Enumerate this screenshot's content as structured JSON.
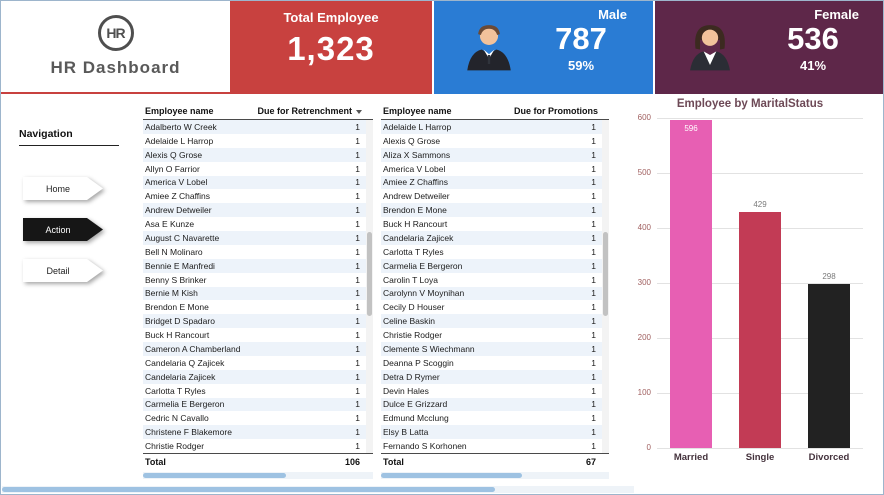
{
  "header": {
    "logo": "HR",
    "title": "HR Dashboard",
    "cards": {
      "total": {
        "label": "Total Employee",
        "value": "1,323"
      },
      "male": {
        "label": "Male",
        "value": "787",
        "percent": "59%"
      },
      "female": {
        "label": "Female",
        "value": "536",
        "percent": "41%"
      }
    }
  },
  "sidebar": {
    "title": "Navigation",
    "items": [
      {
        "label": "Home",
        "active": false
      },
      {
        "label": "Action",
        "active": true
      },
      {
        "label": "Detail",
        "active": false
      }
    ]
  },
  "tables": [
    {
      "name_header": "Employee name",
      "value_header": "Due for Retrenchment",
      "has_dropdown": true,
      "rows": [
        {
          "name": "Adalberto W Creek",
          "value": 1
        },
        {
          "name": "Adelaide L Harrop",
          "value": 1
        },
        {
          "name": "Alexis Q Grose",
          "value": 1
        },
        {
          "name": "Allyn O Farrior",
          "value": 1
        },
        {
          "name": "America V Lobel",
          "value": 1
        },
        {
          "name": "Amiee Z Chaffins",
          "value": 1
        },
        {
          "name": "Andrew Detweiler",
          "value": 1
        },
        {
          "name": "Asa E Kunze",
          "value": 1
        },
        {
          "name": "August C Navarette",
          "value": 1
        },
        {
          "name": "Bell N Molinaro",
          "value": 1
        },
        {
          "name": "Bennie E Manfredi",
          "value": 1
        },
        {
          "name": "Benny S Brinker",
          "value": 1
        },
        {
          "name": "Bernie M Kish",
          "value": 1
        },
        {
          "name": "Brendon E Mone",
          "value": 1
        },
        {
          "name": "Bridget D Spadaro",
          "value": 1
        },
        {
          "name": "Buck H Rancourt",
          "value": 1
        },
        {
          "name": "Cameron A Chamberland",
          "value": 1
        },
        {
          "name": "Candelaria Q Zajicek",
          "value": 1
        },
        {
          "name": "Candelaria Zajicek",
          "value": 1
        },
        {
          "name": "Carlotta T Ryles",
          "value": 1
        },
        {
          "name": "Carmelia E Bergeron",
          "value": 1
        },
        {
          "name": "Cedric N Cavallo",
          "value": 1
        },
        {
          "name": "Christene F Blakemore",
          "value": 1
        },
        {
          "name": "Christie Rodger",
          "value": 1
        }
      ],
      "total_label": "Total",
      "total_value": 106
    },
    {
      "name_header": "Employee name",
      "value_header": "Due for Promotions",
      "has_dropdown": false,
      "rows": [
        {
          "name": "Adelaide L Harrop",
          "value": 1
        },
        {
          "name": "Alexis Q Grose",
          "value": 1
        },
        {
          "name": "Aliza X Sammons",
          "value": 1
        },
        {
          "name": "America V Lobel",
          "value": 1
        },
        {
          "name": "Amiee Z Chaffins",
          "value": 1
        },
        {
          "name": "Andrew Detweiler",
          "value": 1
        },
        {
          "name": "Brendon E Mone",
          "value": 1
        },
        {
          "name": "Buck H Rancourt",
          "value": 1
        },
        {
          "name": "Candelaria Zajicek",
          "value": 1
        },
        {
          "name": "Carlotta T Ryles",
          "value": 1
        },
        {
          "name": "Carmelia E Bergeron",
          "value": 1
        },
        {
          "name": "Carolin T Loya",
          "value": 1
        },
        {
          "name": "Carolynn V Moynihan",
          "value": 1
        },
        {
          "name": "Cecily D Houser",
          "value": 1
        },
        {
          "name": "Celine Baskin",
          "value": 1
        },
        {
          "name": "Christie Rodger",
          "value": 1
        },
        {
          "name": "Clemente S Wiechmann",
          "value": 1
        },
        {
          "name": "Deanna P Scoggin",
          "value": 1
        },
        {
          "name": "Detra D Rymer",
          "value": 1
        },
        {
          "name": "Devin Hales",
          "value": 1
        },
        {
          "name": "Dulce E Grizzard",
          "value": 1
        },
        {
          "name": "Edmund Mcclung",
          "value": 1
        },
        {
          "name": "Elsy B Latta",
          "value": 1
        },
        {
          "name": "Fernando S Korhonen",
          "value": 1
        }
      ],
      "total_label": "Total",
      "total_value": 67
    }
  ],
  "chart_data": {
    "type": "bar",
    "title": "Employee by MaritalStatus",
    "categories": [
      "Married",
      "Single",
      "Divorced"
    ],
    "values": [
      596,
      429,
      298
    ],
    "bar_colors": [
      "#e75fb3",
      "#c23b55",
      "#222222"
    ],
    "ylim": [
      0,
      600
    ],
    "yticks": [
      0,
      100,
      200,
      300,
      400,
      500,
      600
    ],
    "grid": true,
    "legend": "none"
  },
  "colors": {
    "total_card": "#c8413f",
    "male_card": "#2a7cd4",
    "female_card": "#5e2749",
    "scrollbar_accent": "#9ec2e2"
  }
}
